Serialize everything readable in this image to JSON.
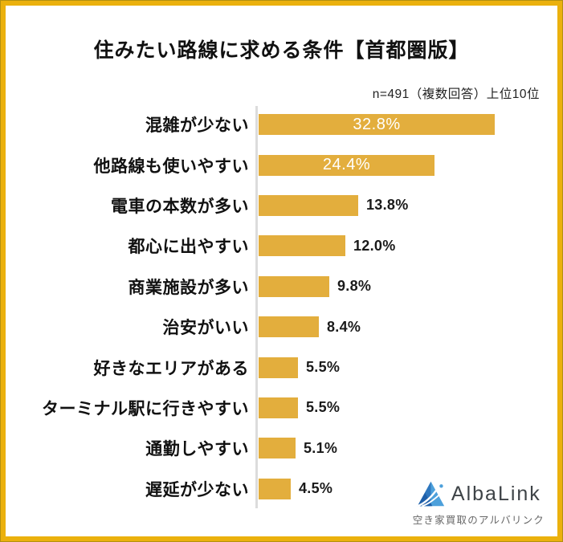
{
  "frame": {
    "border_color": "#EBB10D",
    "border_edge_color": "#B3900F"
  },
  "header": {
    "title": "住みたい路線に求める条件【首都圏版】",
    "subtitle": "n=491（複数回答）上位10位"
  },
  "chart_data": {
    "type": "bar",
    "orientation": "horizontal",
    "title": "住みたい路線に求める条件【首都圏版】",
    "note": "n=491（複数回答）上位10位",
    "categories": [
      "混雑が少ない",
      "他路線も使いやすい",
      "電車の本数が多い",
      "都心に出やすい",
      "商業施設が多い",
      "治安がいい",
      "好きなエリアがある",
      "ターミナル駅に行きやすい",
      "通勤しやすい",
      "遅延が少ない"
    ],
    "values": [
      32.8,
      24.4,
      13.8,
      12.0,
      9.8,
      8.4,
      5.5,
      5.5,
      5.1,
      4.5
    ],
    "value_labels": [
      "32.8%",
      "24.4%",
      "13.8%",
      "12.0%",
      "9.8%",
      "8.4%",
      "5.5%",
      "5.5%",
      "5.1%",
      "4.5%"
    ],
    "xlim": [
      0,
      33
    ],
    "grid": false,
    "legend": "none",
    "bar_color": "#E3AE3D",
    "axis_line_color": "#DCDCDC",
    "inside_value_color": "#FFFFFF",
    "outside_value_color": "#1A1A1A"
  },
  "footer": {
    "logo": {
      "brand": "AlbaLink",
      "tagline": "空き家買取のアルバリンク",
      "icon": "albalink-mountain-icon",
      "brand_color": "#3E4347",
      "tagline_color": "#666666",
      "icon_dark_blue": "#1E5FA9",
      "icon_light_blue": "#4DA0DB"
    }
  }
}
